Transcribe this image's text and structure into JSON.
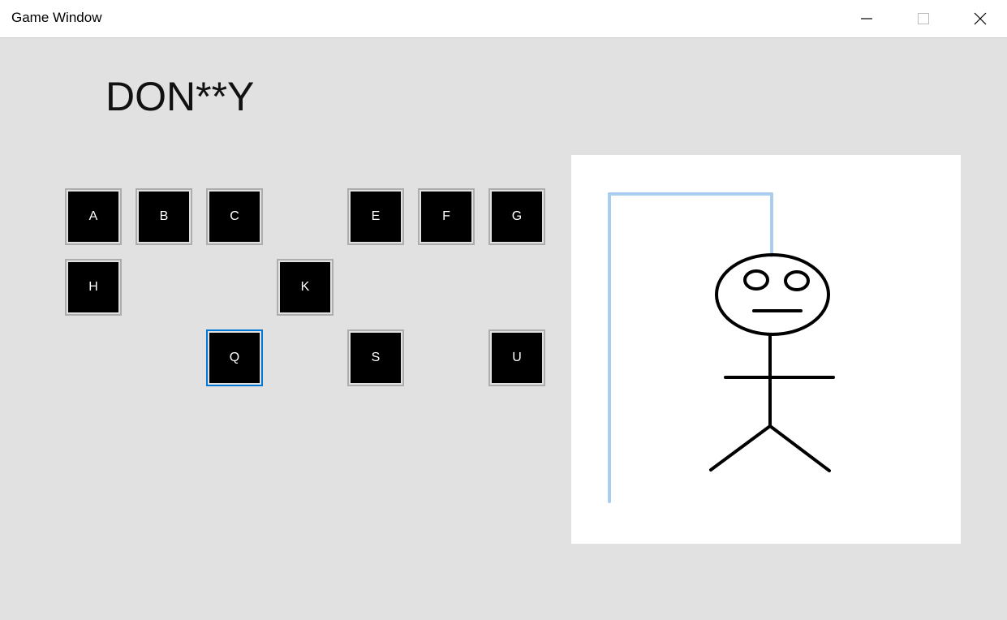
{
  "window": {
    "title": "Game Window",
    "minimize_label": "Minimize",
    "maximize_label": "Maximize",
    "close_label": "Close"
  },
  "game": {
    "masked_word": "DON**Y",
    "letters": {
      "a": "A",
      "b": "B",
      "c": "C",
      "e": "E",
      "f": "F",
      "g": "G",
      "h": "H",
      "k": "K",
      "q": "Q",
      "s": "S",
      "u": "U"
    },
    "focused_letter": "Q"
  },
  "colors": {
    "background": "#e1e1e1",
    "gallows": "#a8cdef",
    "figure": "#000000",
    "focus": "#0078d7"
  },
  "icons": {
    "minimize": "minimize-icon",
    "maximize": "maximize-icon",
    "close": "close-icon"
  }
}
